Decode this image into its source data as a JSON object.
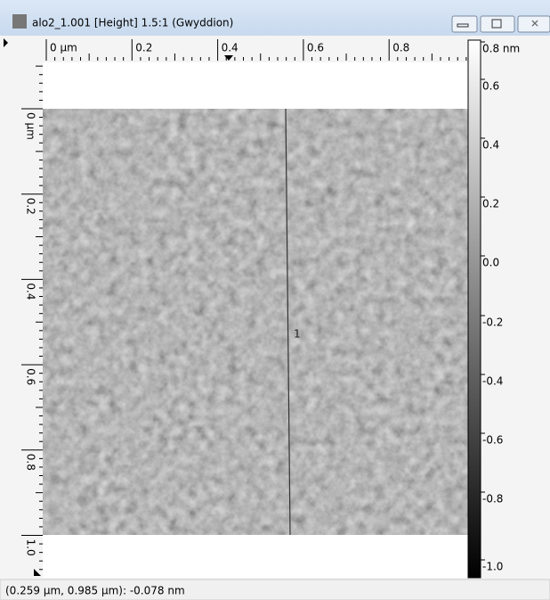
{
  "window": {
    "title": "alo2_1.001 [Height] 1.5:1 (Gwyddion)"
  },
  "x_ruler": {
    "labels": [
      "0 µm",
      "0.2",
      "0.4",
      "0.6",
      "0.8"
    ]
  },
  "y_ruler": {
    "labels": [
      "0 µm",
      "0.2",
      "0.4",
      "0.6",
      "0.8",
      "1.0"
    ]
  },
  "color_scale": {
    "labels": [
      "0.8 nm",
      "0.6",
      "0.4",
      "0.2",
      "0.0",
      "-0.2",
      "-0.4",
      "-0.6",
      "-0.8",
      "-1.0"
    ]
  },
  "image": {
    "marker": "1"
  },
  "status_bar": {
    "text": "(0.259 µm, 0.985 µm): -0.078 nm"
  }
}
